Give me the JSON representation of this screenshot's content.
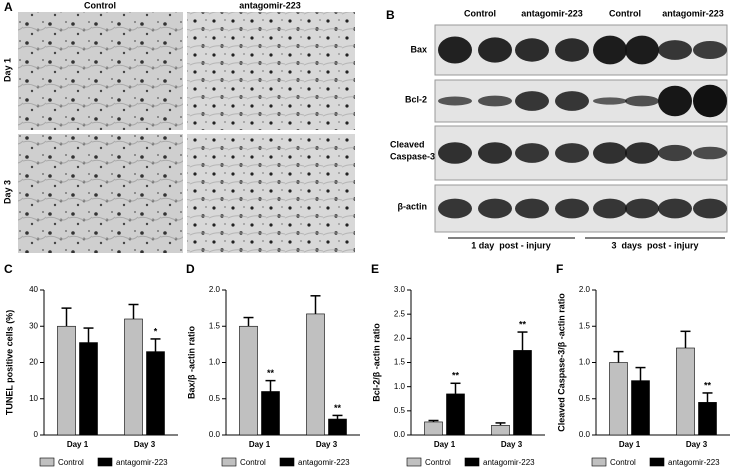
{
  "panels": {
    "a": {
      "label": "A",
      "columns": [
        "Control",
        "antagomir-223"
      ],
      "rows": [
        "Day 1",
        "Day 3"
      ]
    },
    "b": {
      "label": "B",
      "columns": [
        "Control",
        "antagomir-223",
        "Control",
        "antagomir-223"
      ],
      "rows": [
        "Bax",
        "Bcl-2",
        [
          "Cleaved",
          "Caspase-3"
        ],
        "β-actin"
      ],
      "groups": [
        "1 day  post - injury",
        "3  days  post - injury"
      ]
    }
  },
  "chart_data": [
    {
      "type": "bar",
      "panel": "C",
      "ylabel": "TUNEL positive cells (%)",
      "categories": [
        "Day 1",
        "Day 3"
      ],
      "series": [
        {
          "name": "Control",
          "color": "#c0c0c0",
          "values": [
            30,
            32
          ],
          "errors": [
            5,
            4
          ],
          "value_annotations": [
            null,
            null
          ]
        },
        {
          "name": "antagomir-223",
          "color": "#000000",
          "values": [
            25.5,
            23
          ],
          "errors": [
            4,
            3.5
          ],
          "value_annotations": [
            null,
            "*"
          ]
        }
      ],
      "ylim": [
        0,
        40
      ],
      "yticks": [
        0,
        10,
        20,
        30,
        40
      ]
    },
    {
      "type": "bar",
      "panel": "D",
      "ylabel": "Bax/β -actin ratio",
      "categories": [
        "Day 1",
        "Day 3"
      ],
      "series": [
        {
          "name": "Control",
          "color": "#c0c0c0",
          "values": [
            1.5,
            1.67
          ],
          "errors": [
            0.12,
            0.25
          ],
          "value_annotations": [
            null,
            null
          ]
        },
        {
          "name": "antagomir-223",
          "color": "#000000",
          "values": [
            0.6,
            0.22
          ],
          "errors": [
            0.15,
            0.05
          ],
          "value_annotations": [
            "**",
            "**"
          ]
        }
      ],
      "ylim": [
        0,
        2
      ],
      "yticks": [
        {
          "value": 0,
          "label": "0.0"
        },
        0.5,
        {
          "value": 1,
          "label": "1.0"
        },
        1.5,
        {
          "value": 2,
          "label": "2.0"
        }
      ]
    },
    {
      "type": "bar",
      "panel": "E",
      "ylabel": "Bcl-2/β -actin ratio",
      "categories": [
        "Day 1",
        "Day 3"
      ],
      "series": [
        {
          "name": "Control",
          "color": "#c0c0c0",
          "values": [
            0.27,
            0.2
          ],
          "errors": [
            0.03,
            0.05
          ],
          "value_annotations": [
            null,
            null
          ]
        },
        {
          "name": "antagomir-223",
          "color": "#000000",
          "values": [
            0.85,
            1.75
          ],
          "errors": [
            0.22,
            0.38
          ],
          "value_annotations": [
            "**",
            "**"
          ]
        }
      ],
      "ylim": [
        0,
        3
      ],
      "yticks": [
        {
          "value": 0,
          "label": "0.0"
        },
        0.5,
        {
          "value": 1,
          "label": "1.0"
        },
        1.5,
        {
          "value": 2,
          "label": "2.0"
        },
        2.5,
        {
          "value": 3,
          "label": "3.0"
        }
      ]
    },
    {
      "type": "bar",
      "panel": "F",
      "ylabel": "Cleaved Caspase-3/β -actin ratio",
      "categories": [
        "Day 1",
        "Day 3"
      ],
      "series": [
        {
          "name": "Control",
          "color": "#c0c0c0",
          "values": [
            1.0,
            1.2
          ],
          "errors": [
            0.15,
            0.23
          ],
          "value_annotations": [
            null,
            null
          ]
        },
        {
          "name": "antagomir-223",
          "color": "#000000",
          "values": [
            0.75,
            0.45
          ],
          "errors": [
            0.18,
            0.13
          ],
          "value_annotations": [
            null,
            "**"
          ]
        }
      ],
      "ylim": [
        0,
        2
      ],
      "yticks": [
        {
          "value": 0,
          "label": "0.0"
        },
        0.5,
        {
          "value": 1,
          "label": "1.0"
        },
        1.5,
        {
          "value": 2,
          "label": "2.0"
        }
      ]
    }
  ]
}
